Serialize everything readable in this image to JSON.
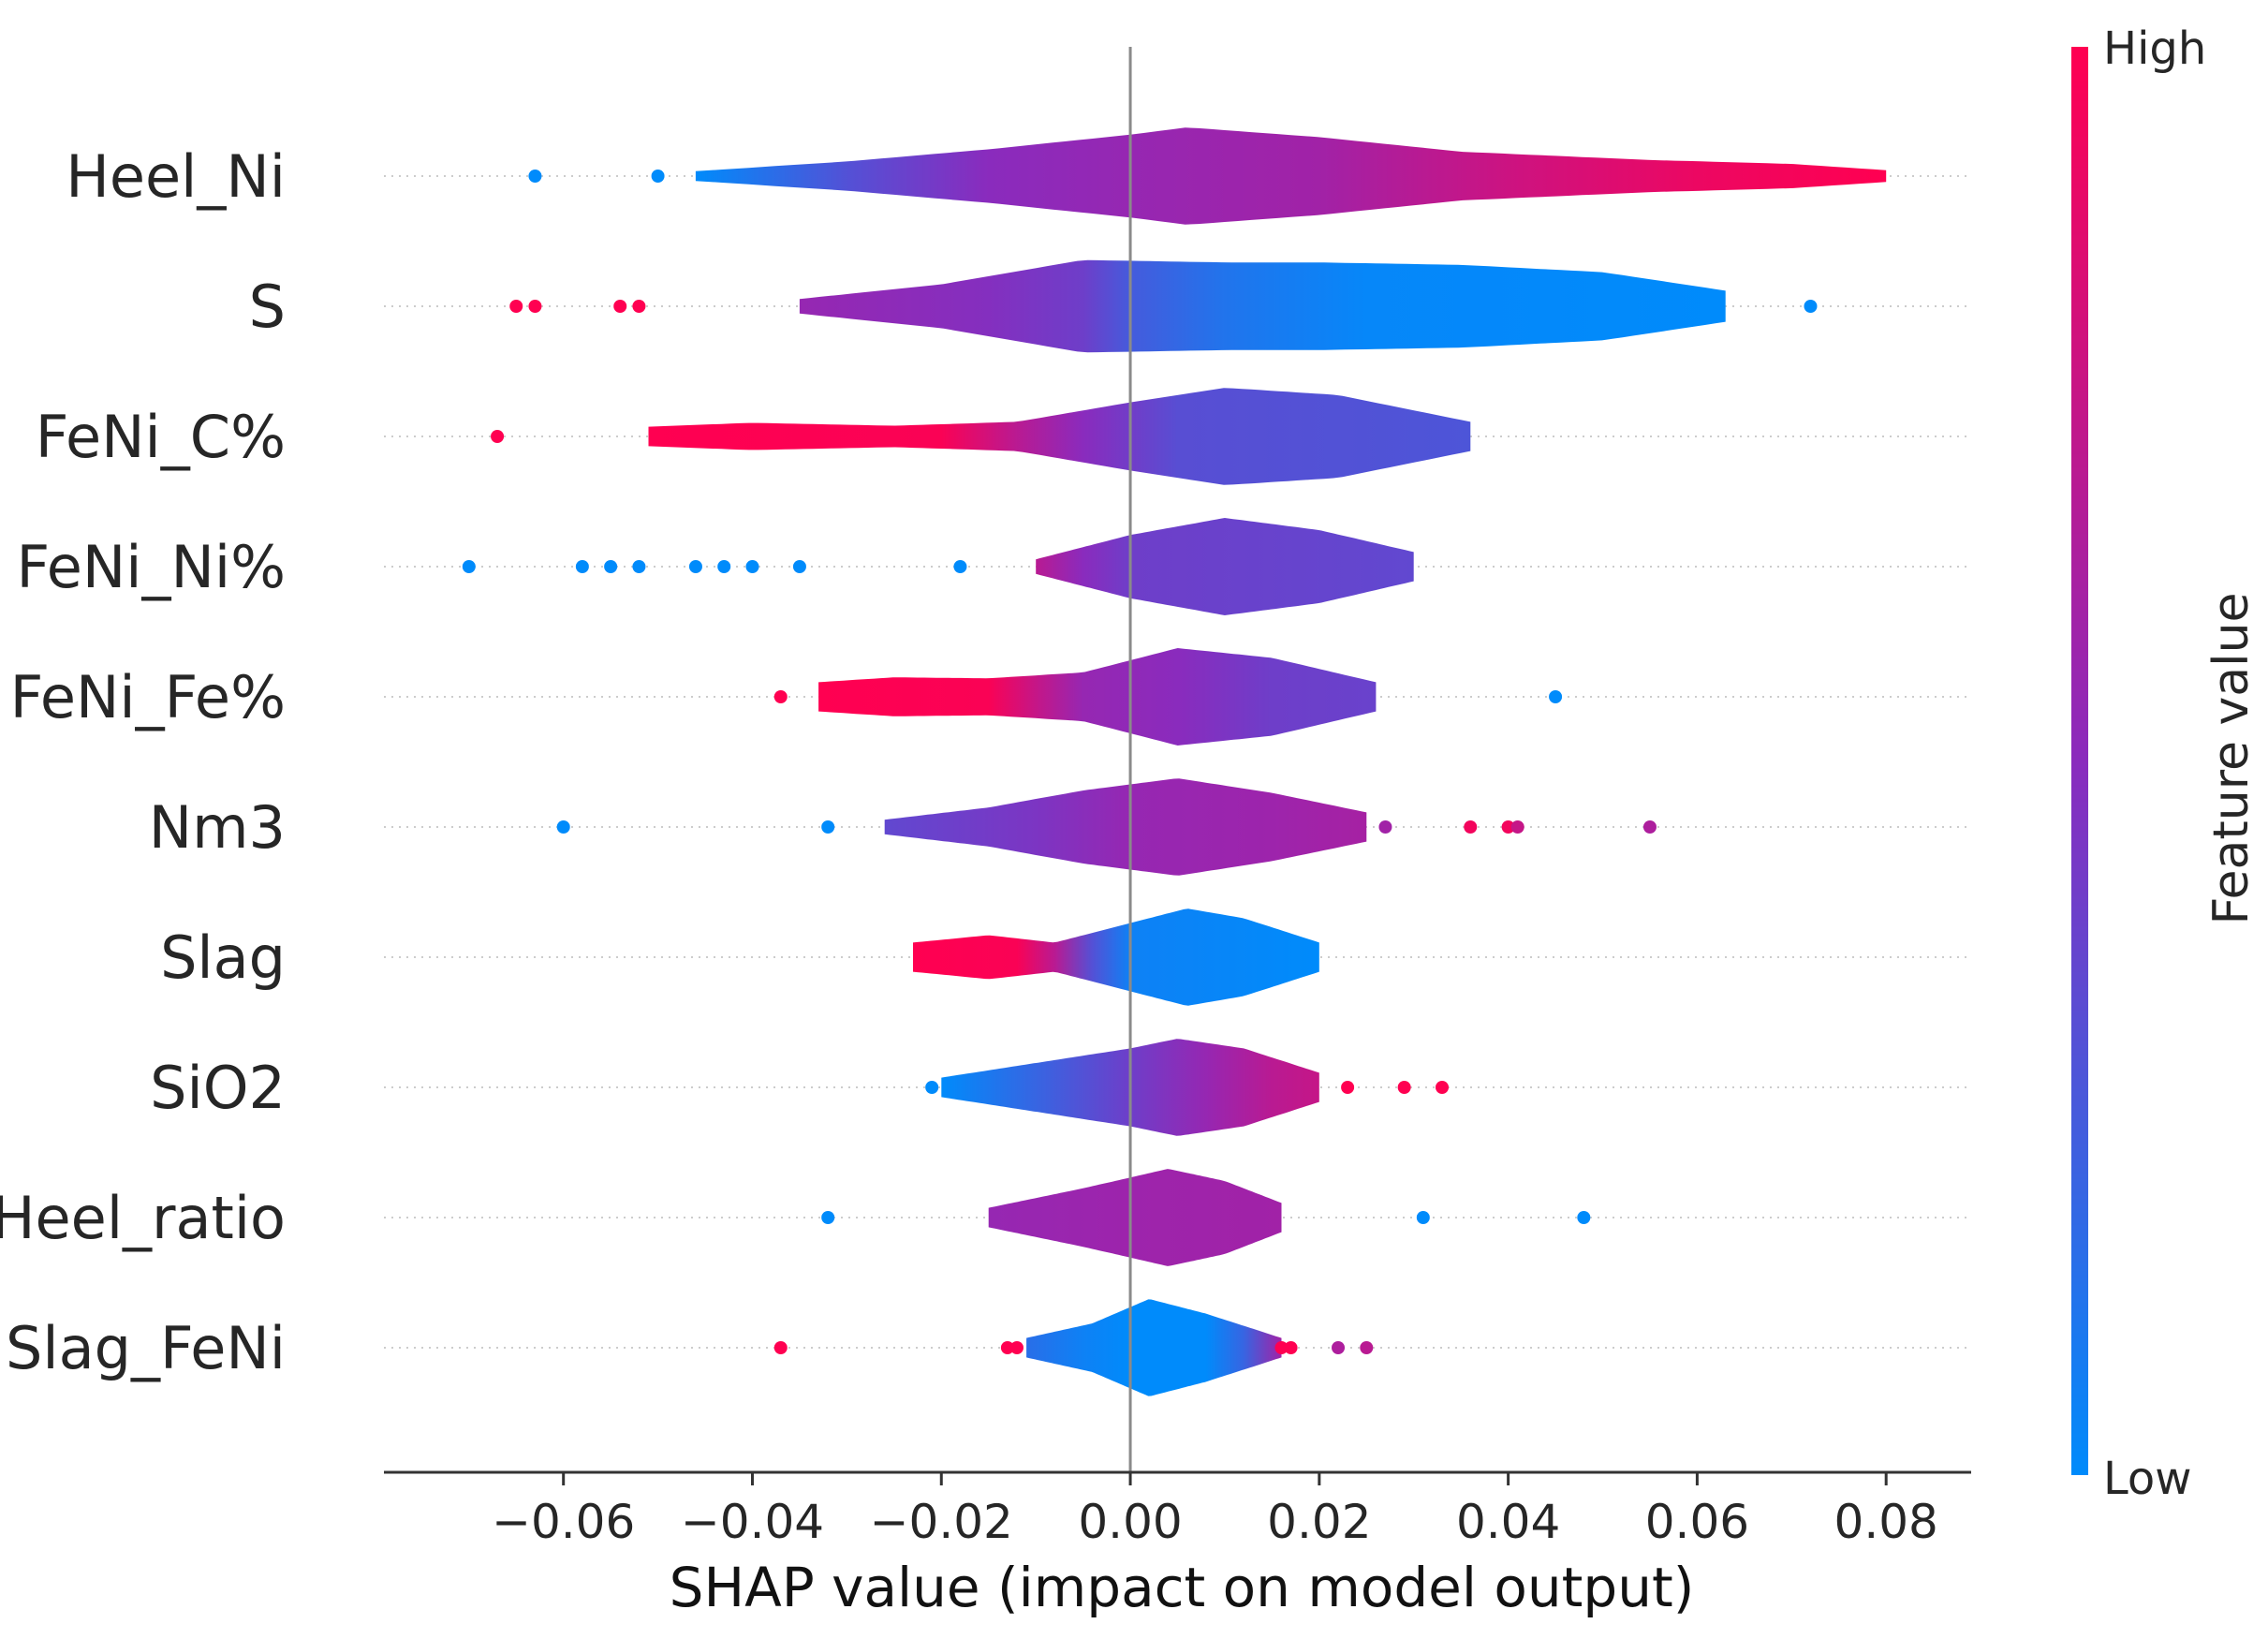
{
  "chart_data": {
    "type": "violin",
    "title": "",
    "xlabel": "SHAP value (impact on model output)",
    "ylabel": "",
    "xlim": [
      -0.079,
      0.089
    ],
    "xticks": [
      -0.06,
      -0.04,
      -0.02,
      0.0,
      0.02,
      0.04,
      0.06,
      0.08
    ],
    "xtick_labels": [
      "−0.06",
      "−0.04",
      "−0.02",
      "0.00",
      "0.02",
      "0.04",
      "0.06",
      "0.08"
    ],
    "colorbar": {
      "title": "Feature value",
      "high_label": "High",
      "low_label": "Low",
      "high_color": "#ff0051",
      "mid_color": "#8a2bbd",
      "low_color": "#008bfb"
    },
    "features": [
      {
        "name": "Heel_Ni",
        "range": [
          -0.046,
          0.08
        ],
        "shape": [
          [
            -0.046,
            0.1
          ],
          [
            -0.03,
            0.3
          ],
          [
            -0.015,
            0.55
          ],
          [
            0.0,
            0.85
          ],
          [
            0.006,
            1.0
          ],
          [
            0.02,
            0.8
          ],
          [
            0.035,
            0.5
          ],
          [
            0.055,
            0.33
          ],
          [
            0.07,
            0.25
          ],
          [
            0.08,
            0.12
          ]
        ],
        "colors": [
          [
            -0.046,
            0.0
          ],
          [
            -0.03,
            0.3
          ],
          [
            -0.015,
            0.5
          ],
          [
            0.0,
            0.55
          ],
          [
            0.02,
            0.6
          ],
          [
            0.04,
            0.78
          ],
          [
            0.06,
            0.92
          ],
          [
            0.08,
            1.0
          ]
        ],
        "points": [
          [
            -0.063,
            0.0
          ],
          [
            -0.05,
            0.0
          ]
        ]
      },
      {
        "name": "S",
        "range": [
          -0.035,
          0.063
        ],
        "shape": [
          [
            -0.035,
            0.15
          ],
          [
            -0.02,
            0.45
          ],
          [
            -0.005,
            0.95
          ],
          [
            0.01,
            0.9
          ],
          [
            0.02,
            0.9
          ],
          [
            0.035,
            0.85
          ],
          [
            0.05,
            0.7
          ],
          [
            0.063,
            0.32
          ]
        ],
        "colors": [
          [
            -0.035,
            0.55
          ],
          [
            -0.015,
            0.48
          ],
          [
            -0.005,
            0.4
          ],
          [
            0.0,
            0.25
          ],
          [
            0.01,
            0.12
          ],
          [
            0.025,
            0.02
          ],
          [
            0.063,
            0.0
          ]
        ],
        "points": [
          [
            -0.065,
            1.0
          ],
          [
            -0.063,
            1.0
          ],
          [
            -0.054,
            1.0
          ],
          [
            -0.052,
            1.0
          ],
          [
            0.072,
            0.0
          ]
        ]
      },
      {
        "name": "FeNi_C%",
        "range": [
          -0.051,
          0.036
        ],
        "shape": [
          [
            -0.051,
            0.2
          ],
          [
            -0.04,
            0.28
          ],
          [
            -0.025,
            0.22
          ],
          [
            -0.012,
            0.3
          ],
          [
            0.0,
            0.7
          ],
          [
            0.01,
            1.0
          ],
          [
            0.022,
            0.85
          ],
          [
            0.036,
            0.3
          ]
        ],
        "colors": [
          [
            -0.051,
            1.0
          ],
          [
            -0.02,
            0.98
          ],
          [
            -0.012,
            0.7
          ],
          [
            -0.005,
            0.5
          ],
          [
            0.005,
            0.32
          ],
          [
            0.036,
            0.28
          ]
        ],
        "points": [
          [
            -0.067,
            1.0
          ]
        ]
      },
      {
        "name": "FeNi_Ni%",
        "range": [
          -0.01,
          0.03
        ],
        "shape": [
          [
            -0.01,
            0.15
          ],
          [
            0.0,
            0.65
          ],
          [
            0.01,
            1.0
          ],
          [
            0.02,
            0.75
          ],
          [
            0.03,
            0.3
          ]
        ],
        "colors": [
          [
            -0.01,
            0.7
          ],
          [
            -0.005,
            0.5
          ],
          [
            0.0,
            0.4
          ],
          [
            0.03,
            0.35
          ]
        ],
        "points": [
          [
            -0.07,
            0.0
          ],
          [
            -0.058,
            0.0
          ],
          [
            -0.055,
            0.0
          ],
          [
            -0.052,
            0.0
          ],
          [
            -0.046,
            0.0
          ],
          [
            -0.043,
            0.0
          ],
          [
            -0.04,
            0.0
          ],
          [
            -0.035,
            0.0
          ],
          [
            -0.018,
            0.0
          ]
        ]
      },
      {
        "name": "FeNi_Fe%",
        "range": [
          -0.033,
          0.026
        ],
        "shape": [
          [
            -0.033,
            0.3
          ],
          [
            -0.025,
            0.4
          ],
          [
            -0.015,
            0.38
          ],
          [
            -0.005,
            0.5
          ],
          [
            0.005,
            1.0
          ],
          [
            0.015,
            0.8
          ],
          [
            0.026,
            0.3
          ]
        ],
        "colors": [
          [
            -0.033,
            1.0
          ],
          [
            -0.015,
            0.98
          ],
          [
            -0.01,
            0.75
          ],
          [
            -0.005,
            0.55
          ],
          [
            0.005,
            0.5
          ],
          [
            0.015,
            0.4
          ],
          [
            0.026,
            0.38
          ]
        ],
        "points": [
          [
            -0.037,
            1.0
          ],
          [
            0.045,
            0.0
          ]
        ]
      },
      {
        "name": "Nm3",
        "range": [
          -0.026,
          0.025
        ],
        "shape": [
          [
            -0.026,
            0.15
          ],
          [
            -0.015,
            0.4
          ],
          [
            -0.005,
            0.75
          ],
          [
            0.005,
            1.0
          ],
          [
            0.015,
            0.7
          ],
          [
            0.025,
            0.3
          ]
        ],
        "colors": [
          [
            -0.026,
            0.35
          ],
          [
            -0.01,
            0.45
          ],
          [
            0.0,
            0.55
          ],
          [
            0.015,
            0.58
          ],
          [
            0.025,
            0.62
          ]
        ],
        "points": [
          [
            -0.06,
            0.0
          ],
          [
            -0.032,
            0.0
          ],
          [
            0.027,
            0.6
          ],
          [
            0.036,
            0.95
          ],
          [
            0.04,
            0.95
          ],
          [
            0.041,
            0.75
          ],
          [
            0.055,
            0.65
          ]
        ]
      },
      {
        "name": "Slag",
        "range": [
          -0.023,
          0.02
        ],
        "shape": [
          [
            -0.023,
            0.3
          ],
          [
            -0.015,
            0.45
          ],
          [
            -0.008,
            0.3
          ],
          [
            0.0,
            0.7
          ],
          [
            0.006,
            1.0
          ],
          [
            0.012,
            0.8
          ],
          [
            0.02,
            0.3
          ]
        ],
        "colors": [
          [
            -0.023,
            1.0
          ],
          [
            -0.012,
            0.98
          ],
          [
            -0.008,
            0.7
          ],
          [
            -0.004,
            0.3
          ],
          [
            0.0,
            0.05
          ],
          [
            0.02,
            0.0
          ]
        ],
        "points": []
      },
      {
        "name": "SiO2",
        "range": [
          -0.02,
          0.02
        ],
        "shape": [
          [
            -0.02,
            0.2
          ],
          [
            -0.01,
            0.5
          ],
          [
            0.0,
            0.8
          ],
          [
            0.005,
            1.0
          ],
          [
            0.012,
            0.8
          ],
          [
            0.02,
            0.3
          ]
        ],
        "colors": [
          [
            -0.02,
            0.0
          ],
          [
            -0.01,
            0.2
          ],
          [
            0.0,
            0.4
          ],
          [
            0.008,
            0.55
          ],
          [
            0.015,
            0.7
          ],
          [
            0.02,
            0.75
          ]
        ],
        "points": [
          [
            -0.021,
            0.0
          ],
          [
            0.023,
            1.0
          ],
          [
            0.029,
            1.0
          ],
          [
            0.033,
            1.0
          ]
        ]
      },
      {
        "name": "Heel_ratio",
        "range": [
          -0.015,
          0.016
        ],
        "shape": [
          [
            -0.015,
            0.2
          ],
          [
            -0.005,
            0.6
          ],
          [
            0.004,
            1.0
          ],
          [
            0.01,
            0.75
          ],
          [
            0.016,
            0.3
          ]
        ],
        "colors": [
          [
            -0.015,
            0.55
          ],
          [
            0.0,
            0.58
          ],
          [
            0.016,
            0.6
          ]
        ],
        "points": [
          [
            -0.032,
            0.0
          ],
          [
            0.031,
            0.0
          ],
          [
            0.048,
            0.0
          ]
        ]
      },
      {
        "name": "Slag_FeNi",
        "range": [
          -0.011,
          0.016
        ],
        "shape": [
          [
            -0.011,
            0.2
          ],
          [
            -0.004,
            0.5
          ],
          [
            0.002,
            1.0
          ],
          [
            0.008,
            0.7
          ],
          [
            0.016,
            0.2
          ]
        ],
        "colors": [
          [
            -0.011,
            0.15
          ],
          [
            -0.005,
            0.05
          ],
          [
            0.0,
            0.0
          ],
          [
            0.008,
            0.0
          ],
          [
            0.012,
            0.2
          ],
          [
            0.016,
            0.6
          ]
        ],
        "points": [
          [
            -0.037,
            1.0
          ],
          [
            -0.013,
            1.0
          ],
          [
            -0.012,
            1.0
          ],
          [
            0.016,
            1.0
          ],
          [
            0.017,
            1.0
          ],
          [
            0.022,
            0.65
          ],
          [
            0.025,
            0.7
          ]
        ]
      }
    ]
  }
}
